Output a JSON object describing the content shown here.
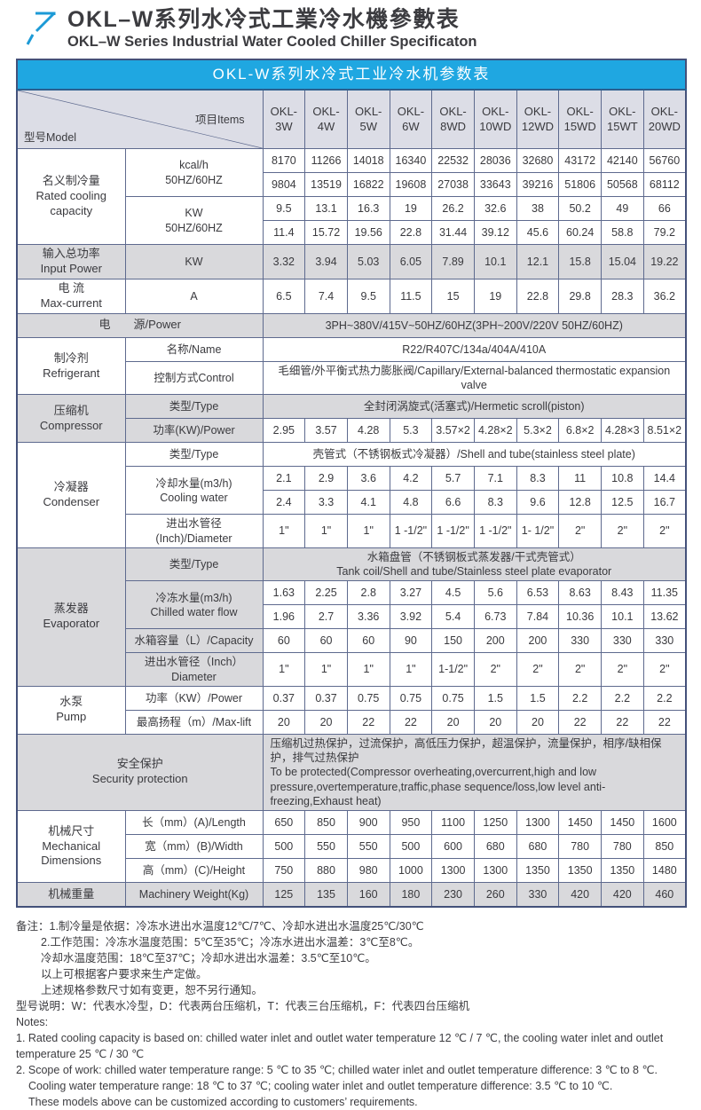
{
  "colors": {
    "accent_blue": "#1fa7e1",
    "logo_blue": "#1c9ad6",
    "header_row_bg": "#dcdde6",
    "shaded_row_bg": "#d9d9dc",
    "grid_border": "#5e6a8e",
    "title_text": "#ffffff"
  },
  "page_header": {
    "title_cn": "OKL–W系列水冷式工業冷水機參數表",
    "title_en": "OKL–W Series Industrial Water Cooled Chiller Specificaton"
  },
  "table": {
    "title": "OKL-W系列水冷式工业冷水机参数表",
    "corner_model": "型号Model",
    "corner_items": "项目Items",
    "models": [
      "OKL-\n3W",
      "OKL-\n4W",
      "OKL-\n5W",
      "OKL-\n6W",
      "OKL-\n8WD",
      "OKL-\n10WD",
      "OKL-\n12WD",
      "OKL-\n15WD",
      "OKL-\n15WT",
      "OKL-\n20WD"
    ],
    "rows": [
      [
        {
          "t": "名义制冷量\nRated cooling\ncapacity",
          "rs": 4,
          "c": "l"
        },
        {
          "t": "kcal/h\n50HZ/60HZ",
          "rs": 2
        },
        {
          "t": "8170"
        },
        {
          "t": "11266"
        },
        {
          "t": "14018"
        },
        {
          "t": "16340"
        },
        {
          "t": "22532"
        },
        {
          "t": "28036"
        },
        {
          "t": "32680"
        },
        {
          "t": "43172"
        },
        {
          "t": "42140"
        },
        {
          "t": "56760"
        }
      ],
      [
        {
          "t": "9804"
        },
        {
          "t": "13519"
        },
        {
          "t": "16822"
        },
        {
          "t": "19608"
        },
        {
          "t": "27038"
        },
        {
          "t": "33643"
        },
        {
          "t": "39216"
        },
        {
          "t": "51806"
        },
        {
          "t": "50568"
        },
        {
          "t": "68112"
        }
      ],
      [
        {
          "t": "KW\n50HZ/60HZ",
          "rs": 2
        },
        {
          "t": "9.5"
        },
        {
          "t": "13.1"
        },
        {
          "t": "16.3"
        },
        {
          "t": "19"
        },
        {
          "t": "26.2"
        },
        {
          "t": "32.6"
        },
        {
          "t": "38"
        },
        {
          "t": "50.2"
        },
        {
          "t": "49"
        },
        {
          "t": "66"
        }
      ],
      [
        {
          "t": "11.4"
        },
        {
          "t": "15.72"
        },
        {
          "t": "19.56"
        },
        {
          "t": "22.8"
        },
        {
          "t": "31.44"
        },
        {
          "t": "39.12"
        },
        {
          "t": "45.6"
        },
        {
          "t": "60.24"
        },
        {
          "t": "58.8"
        },
        {
          "t": "79.2"
        }
      ],
      [
        {
          "t": "输入总功率\nInput Power",
          "c": "l g"
        },
        {
          "t": "KW",
          "c": "g"
        },
        {
          "t": "3.32",
          "c": "g"
        },
        {
          "t": "3.94",
          "c": "g"
        },
        {
          "t": "5.03",
          "c": "g"
        },
        {
          "t": "6.05",
          "c": "g"
        },
        {
          "t": "7.89",
          "c": "g"
        },
        {
          "t": "10.1",
          "c": "g"
        },
        {
          "t": "12.1",
          "c": "g"
        },
        {
          "t": "15.8",
          "c": "g"
        },
        {
          "t": "15.04",
          "c": "g"
        },
        {
          "t": "19.22",
          "c": "g"
        }
      ],
      [
        {
          "t": "电 流\nMax-current",
          "c": "l"
        },
        {
          "t": "A"
        },
        {
          "t": "6.5"
        },
        {
          "t": "7.4"
        },
        {
          "t": "9.5"
        },
        {
          "t": "11.5"
        },
        {
          "t": "15"
        },
        {
          "t": "19"
        },
        {
          "t": "22.8"
        },
        {
          "t": "29.8"
        },
        {
          "t": "28.3"
        },
        {
          "t": "36.2"
        }
      ],
      [
        {
          "t": "电　　源/Power",
          "cs": 2,
          "c": "l g"
        },
        {
          "t": "3PH~380V/415V~50HZ/60HZ(3PH~200V/220V  50HZ/60HZ)",
          "cs": 10,
          "c": "g"
        }
      ],
      [
        {
          "t": "制冷剂\nRefrigerant",
          "rs": 2,
          "c": "l"
        },
        {
          "t": "名称/Name"
        },
        {
          "t": "R22/R407C/134a/404A/410A",
          "cs": 10
        }
      ],
      [
        {
          "t": "控制方式Control"
        },
        {
          "t": "毛细管/外平衡式热力膨胀阀/Capillary/External-balanced thermostatic expansion valve",
          "cs": 10
        }
      ],
      [
        {
          "t": "压缩机\nCompressor",
          "rs": 2,
          "c": "l g"
        },
        {
          "t": "类型/Type",
          "c": "g"
        },
        {
          "t": "全封闭涡旋式(活塞式)/Hermetic scroll(piston)",
          "cs": 10,
          "c": "g"
        }
      ],
      [
        {
          "t": "功率(KW)/Power",
          "c": "g"
        },
        {
          "t": "2.95"
        },
        {
          "t": "3.57"
        },
        {
          "t": "4.28"
        },
        {
          "t": "5.3"
        },
        {
          "t": "3.57×2"
        },
        {
          "t": "4.28×2"
        },
        {
          "t": "5.3×2"
        },
        {
          "t": "6.8×2"
        },
        {
          "t": "4.28×3"
        },
        {
          "t": "8.51×2"
        }
      ],
      [
        {
          "t": "冷凝器\nCondenser",
          "rs": 4,
          "c": "l"
        },
        {
          "t": "类型/Type"
        },
        {
          "t": "壳管式（不锈钢板式冷凝器）/Shell and tube(stainless steel plate)",
          "cs": 10
        }
      ],
      [
        {
          "t": "冷却水量(m3/h)\nCooling water",
          "rs": 2
        },
        {
          "t": "2.1"
        },
        {
          "t": "2.9"
        },
        {
          "t": "3.6"
        },
        {
          "t": "4.2"
        },
        {
          "t": "5.7"
        },
        {
          "t": "7.1"
        },
        {
          "t": "8.3"
        },
        {
          "t": "11"
        },
        {
          "t": "10.8"
        },
        {
          "t": "14.4"
        }
      ],
      [
        {
          "t": "2.4"
        },
        {
          "t": "3.3"
        },
        {
          "t": "4.1"
        },
        {
          "t": "4.8"
        },
        {
          "t": "6.6"
        },
        {
          "t": "8.3"
        },
        {
          "t": "9.6"
        },
        {
          "t": "12.8"
        },
        {
          "t": "12.5"
        },
        {
          "t": "16.7"
        }
      ],
      [
        {
          "t": "进出水管径\n(Inch)/Diameter"
        },
        {
          "t": "1\""
        },
        {
          "t": "1\""
        },
        {
          "t": "1\""
        },
        {
          "t": "1 -1/2\""
        },
        {
          "t": "1 -1/2\""
        },
        {
          "t": "1 -1/2\""
        },
        {
          "t": "1- 1/2\""
        },
        {
          "t": "2\""
        },
        {
          "t": "2\""
        },
        {
          "t": "2\""
        }
      ],
      [
        {
          "t": "蒸发器\nEvaporator",
          "rs": 5,
          "c": "l g"
        },
        {
          "t": "类型/Type",
          "c": "g"
        },
        {
          "t": "水箱盘管（不锈钢板式蒸发器/干式壳管式）\nTank coil/Shell and tube/Stainless steel plate evaporator",
          "cs": 10,
          "c": "g"
        }
      ],
      [
        {
          "t": "冷冻水量(m3/h)\nChilled water flow",
          "rs": 2,
          "c": "g"
        },
        {
          "t": "1.63"
        },
        {
          "t": "2.25"
        },
        {
          "t": "2.8"
        },
        {
          "t": "3.27"
        },
        {
          "t": "4.5"
        },
        {
          "t": "5.6"
        },
        {
          "t": "6.53"
        },
        {
          "t": "8.63"
        },
        {
          "t": "8.43"
        },
        {
          "t": "11.35"
        }
      ],
      [
        {
          "t": "1.96"
        },
        {
          "t": "2.7"
        },
        {
          "t": "3.36"
        },
        {
          "t": "3.92"
        },
        {
          "t": "5.4"
        },
        {
          "t": "6.73"
        },
        {
          "t": "7.84"
        },
        {
          "t": "10.36"
        },
        {
          "t": "10.1"
        },
        {
          "t": "13.62"
        }
      ],
      [
        {
          "t": "水箱容量（L）/Capacity",
          "c": "g"
        },
        {
          "t": "60"
        },
        {
          "t": "60"
        },
        {
          "t": "60"
        },
        {
          "t": "90"
        },
        {
          "t": "150"
        },
        {
          "t": "200"
        },
        {
          "t": "200"
        },
        {
          "t": "330"
        },
        {
          "t": "330"
        },
        {
          "t": "330"
        }
      ],
      [
        {
          "t": "进出水管径（Inch）\nDiameter",
          "c": "g"
        },
        {
          "t": "1\""
        },
        {
          "t": "1\""
        },
        {
          "t": "1\""
        },
        {
          "t": "1\""
        },
        {
          "t": "1-1/2\""
        },
        {
          "t": "2\""
        },
        {
          "t": "2\""
        },
        {
          "t": "2\""
        },
        {
          "t": "2\""
        },
        {
          "t": "2\""
        }
      ],
      [
        {
          "t": "水泵\nPump",
          "rs": 2,
          "c": "l"
        },
        {
          "t": "功率（KW）/Power"
        },
        {
          "t": "0.37"
        },
        {
          "t": "0.37"
        },
        {
          "t": "0.75"
        },
        {
          "t": "0.75"
        },
        {
          "t": "0.75"
        },
        {
          "t": "1.5"
        },
        {
          "t": "1.5"
        },
        {
          "t": "2.2"
        },
        {
          "t": "2.2"
        },
        {
          "t": "2.2"
        }
      ],
      [
        {
          "t": "最高扬程（m）/Max-lift"
        },
        {
          "t": "20"
        },
        {
          "t": "20"
        },
        {
          "t": "22"
        },
        {
          "t": "22"
        },
        {
          "t": "20"
        },
        {
          "t": "20"
        },
        {
          "t": "20"
        },
        {
          "t": "22"
        },
        {
          "t": "22"
        },
        {
          "t": "22"
        }
      ],
      [
        {
          "t": "安全保护\nSecurity protection",
          "cs": 2,
          "c": "l g"
        },
        {
          "t": "压缩机过热保护，过流保护，高低压力保护，超温保护，流量保护，相序/缺相保护，排气过热保护\nTo be protected(Compressor overheating,overcurrent,high and low\npressure,overtemperature,traffic,phase sequence/loss,low level anti-freezing,Exhaust heat)",
          "cs": 10,
          "c": "g left"
        }
      ],
      [
        {
          "t": "机械尺寸\nMechanical\nDimensions",
          "rs": 3,
          "c": "l"
        },
        {
          "t": "长（mm）(A)/Length"
        },
        {
          "t": "650"
        },
        {
          "t": "850"
        },
        {
          "t": "900"
        },
        {
          "t": "950"
        },
        {
          "t": "1100"
        },
        {
          "t": "1250"
        },
        {
          "t": "1300"
        },
        {
          "t": "1450"
        },
        {
          "t": "1450"
        },
        {
          "t": "1600"
        }
      ],
      [
        {
          "t": "宽（mm）(B)/Width"
        },
        {
          "t": "500"
        },
        {
          "t": "550"
        },
        {
          "t": "550"
        },
        {
          "t": "500"
        },
        {
          "t": "600"
        },
        {
          "t": "680"
        },
        {
          "t": "680"
        },
        {
          "t": "780"
        },
        {
          "t": "780"
        },
        {
          "t": "850"
        }
      ],
      [
        {
          "t": "高（mm）(C)/Height"
        },
        {
          "t": "750"
        },
        {
          "t": "880"
        },
        {
          "t": "980"
        },
        {
          "t": "1000"
        },
        {
          "t": "1300"
        },
        {
          "t": "1300"
        },
        {
          "t": "1350"
        },
        {
          "t": "1350"
        },
        {
          "t": "1350"
        },
        {
          "t": "1480"
        }
      ],
      [
        {
          "t": "机械重量",
          "c": "l g"
        },
        {
          "t": "Machinery Weight(Kg)",
          "c": "g"
        },
        {
          "t": "125",
          "c": "g"
        },
        {
          "t": "135",
          "c": "g"
        },
        {
          "t": "160",
          "c": "g"
        },
        {
          "t": "180",
          "c": "g"
        },
        {
          "t": "230",
          "c": "g"
        },
        {
          "t": "260",
          "c": "g"
        },
        {
          "t": "330",
          "c": "g"
        },
        {
          "t": "420",
          "c": "g"
        },
        {
          "t": "420",
          "c": "g"
        },
        {
          "t": "460",
          "c": "g"
        }
      ]
    ]
  },
  "notes": [
    {
      "text": "备注：1.制冷量是依据：冷冻水进出水温度12℃/7℃、冷却水进出水温度25℃/30℃",
      "indent": 0
    },
    {
      "text": "2.工作范围：冷冻水温度范围：5℃至35℃；冷冻水进出水温差：3℃至8℃。",
      "indent": 2
    },
    {
      "text": "冷却水温度范围：18℃至37℃；冷却水进出水温差：3.5℃至10℃。",
      "indent": 2
    },
    {
      "text": "以上可根据客户要求来生产定做。",
      "indent": 2
    },
    {
      "text": "上述规格参数尺寸如有变更，恕不另行通知。",
      "indent": 2
    },
    {
      "text": "型号说明：W：代表水冷型，D：代表两台压缩机，T：代表三台压缩机，F：代表四台压缩机",
      "indent": 0
    },
    {
      "text": "Notes:",
      "indent": 0
    },
    {
      "text": "1. Rated cooling capacity is based on: chilled water inlet and outlet water temperature 12 ℃ / 7 ℃, the cooling water inlet and outlet",
      "indent": 0
    },
    {
      "text": "temperature 25 ℃ / 30 ℃",
      "indent": 0
    },
    {
      "text": "2. Scope of work: chilled water temperature range: 5 ℃ to 35 ℃; chilled water inlet and outlet temperature difference: 3 ℃ to 8 ℃.",
      "indent": 0
    },
    {
      "text": "Cooling water temperature range: 18 ℃ to 37 ℃; cooling water inlet and outlet temperature difference: 3.5 ℃ to 10 ℃.",
      "indent": 1
    },
    {
      "text": "These models above can be customized according to customers’  requirements.",
      "indent": 1
    }
  ]
}
